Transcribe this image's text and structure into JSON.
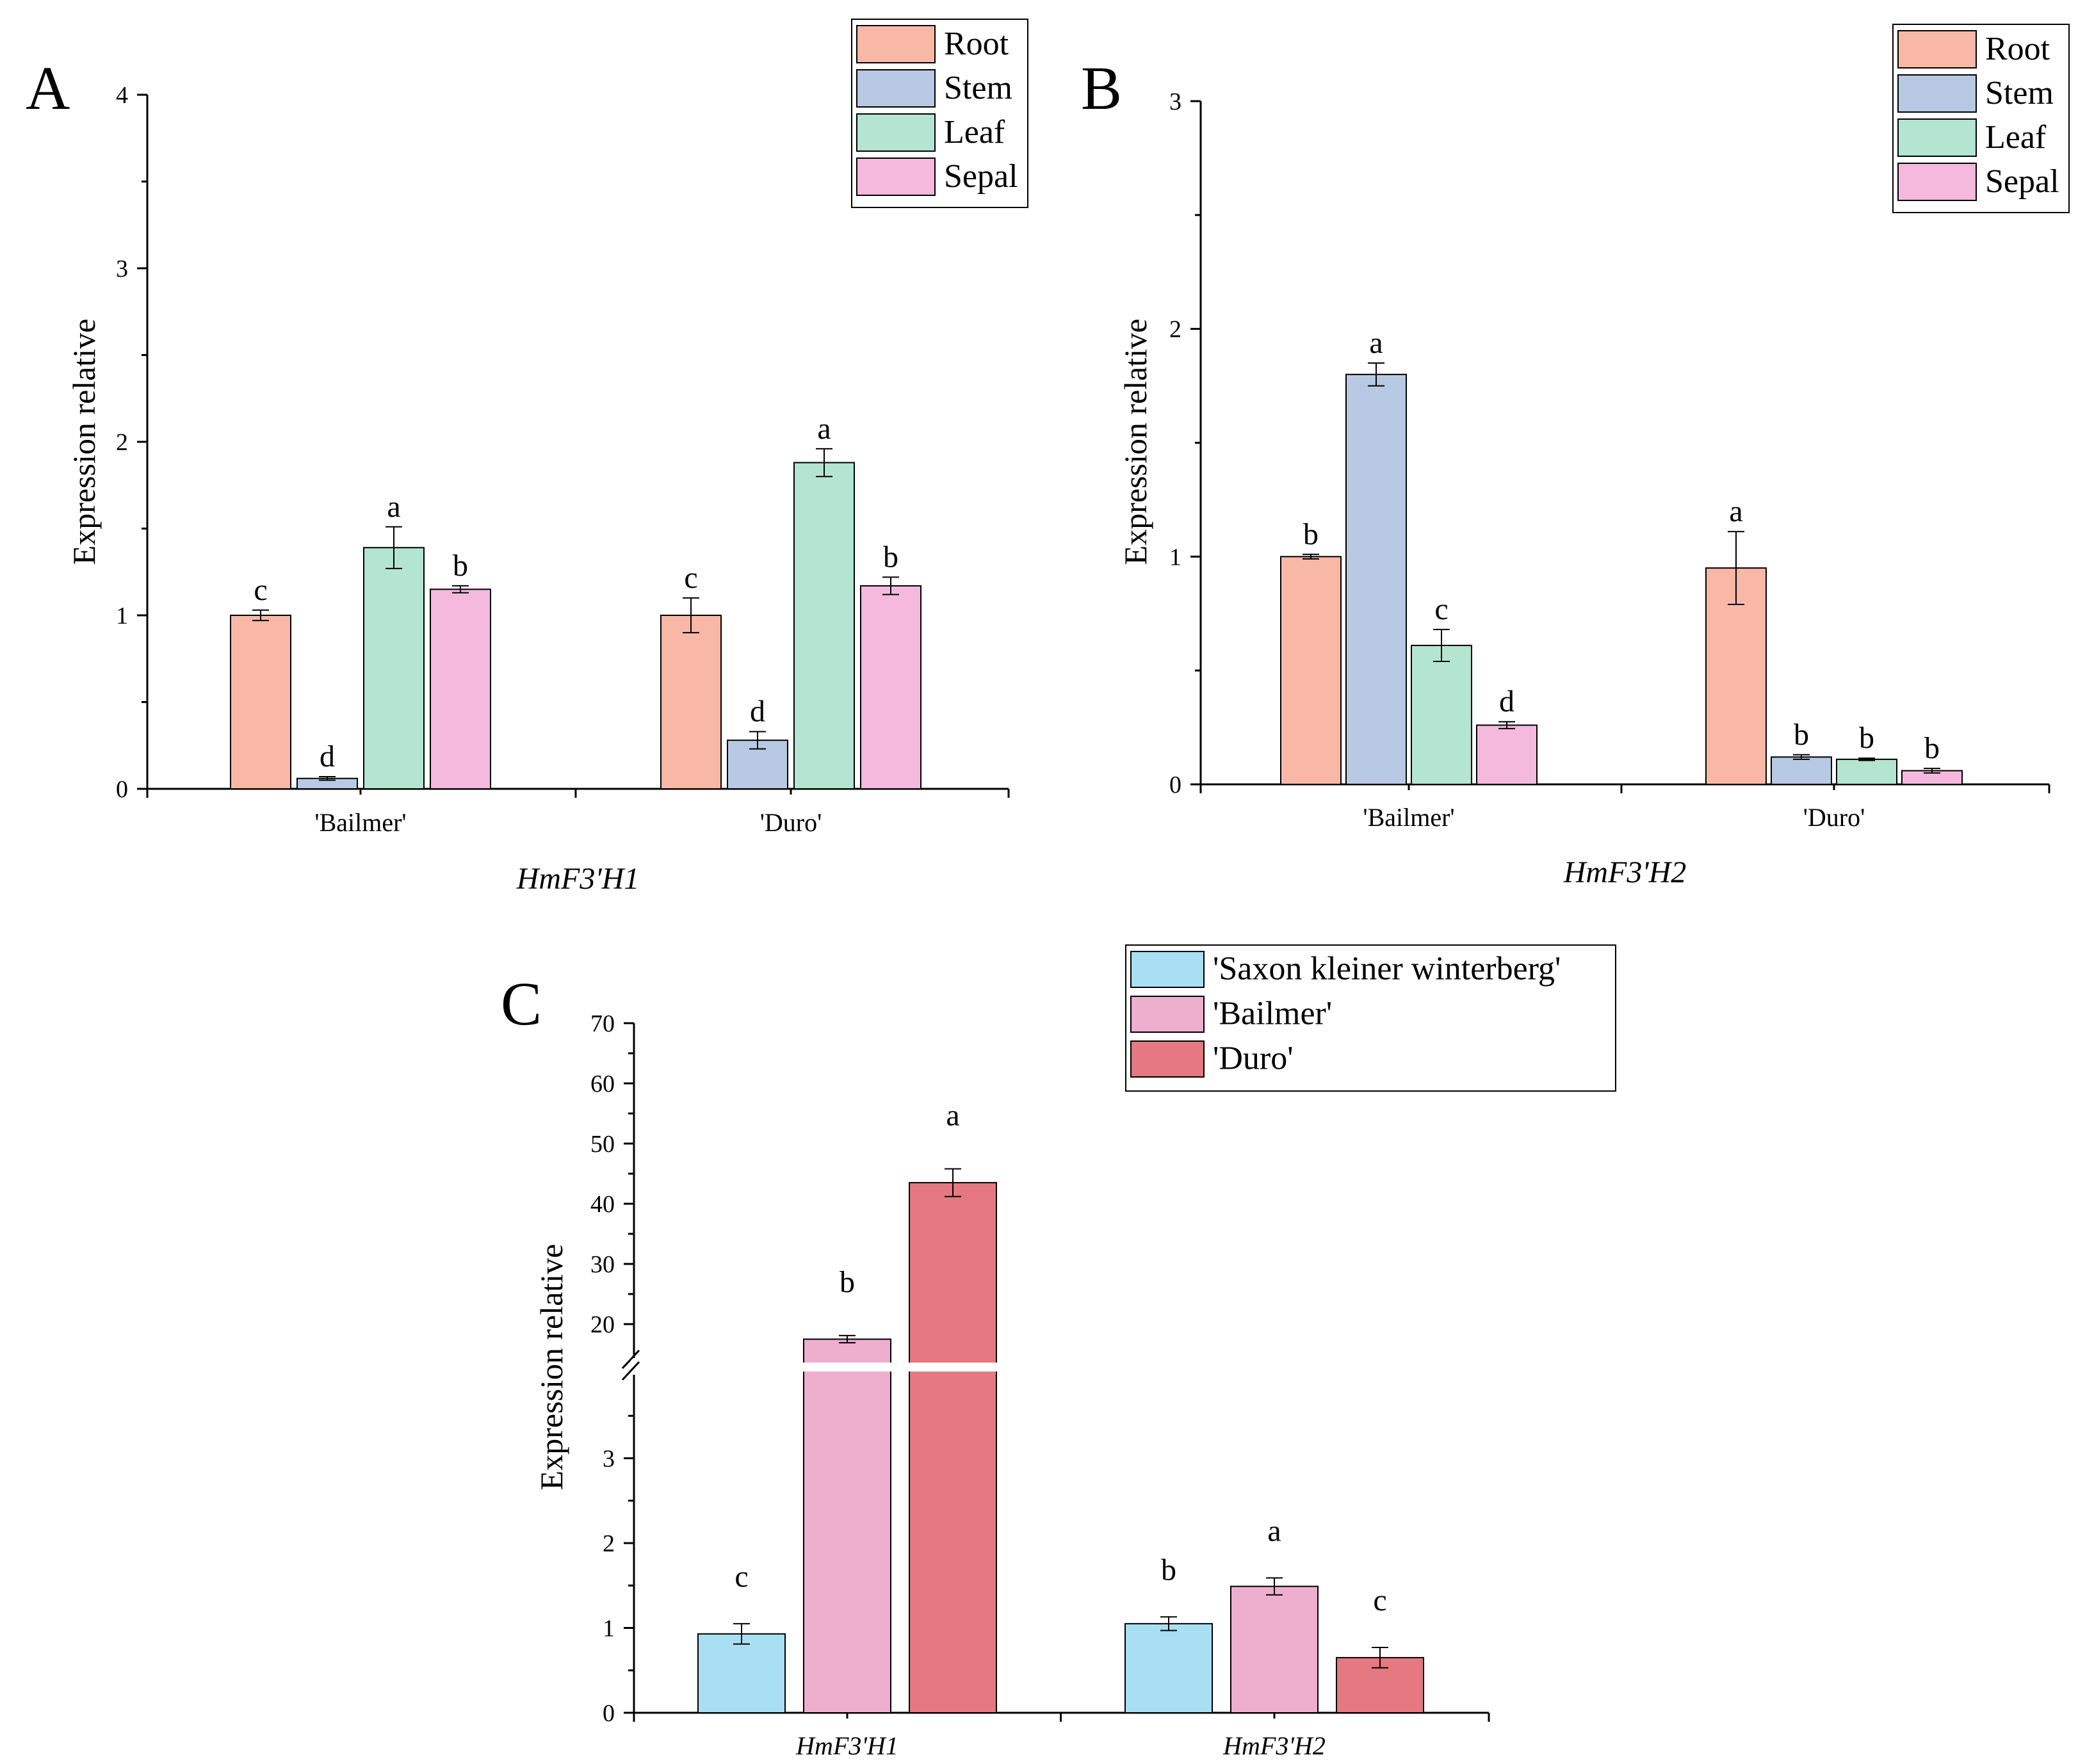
{
  "chart_data": [
    {
      "id": "A",
      "type": "bar",
      "panel_label": "A",
      "gene": "HmF3'H1",
      "ylabel": "Expression relative",
      "ylim": [
        0,
        4
      ],
      "yticks": [
        0,
        1,
        2,
        3,
        4
      ],
      "categories": [
        "'Bailmer'",
        "'Duro'"
      ],
      "series": [
        {
          "name": "Root",
          "color": "#F9B8A6",
          "values": [
            1.0,
            1.0
          ],
          "errors": [
            0.03,
            0.1
          ],
          "letters": [
            "c",
            "c"
          ]
        },
        {
          "name": "Stem",
          "color": "#B8C9E3",
          "values": [
            0.06,
            0.28
          ],
          "errors": [
            0.01,
            0.05
          ],
          "letters": [
            "d",
            "d"
          ]
        },
        {
          "name": "Leaf",
          "color": "#B3E5D2",
          "values": [
            1.39,
            1.88
          ],
          "errors": [
            0.12,
            0.08
          ],
          "letters": [
            "a",
            "a"
          ]
        },
        {
          "name": "Sepal",
          "color": "#F5B9DD",
          "values": [
            1.15,
            1.17
          ],
          "errors": [
            0.02,
            0.05
          ],
          "letters": [
            "b",
            "b"
          ]
        }
      ],
      "legend": "top-right"
    },
    {
      "id": "B",
      "type": "bar",
      "panel_label": "B",
      "gene": "HmF3'H2",
      "ylabel": "Expression relative",
      "ylim": [
        0,
        3
      ],
      "yticks": [
        0,
        1,
        2,
        3
      ],
      "categories": [
        "'Bailmer'",
        "'Duro'"
      ],
      "series": [
        {
          "name": "Root",
          "color": "#F9B8A6",
          "values": [
            1.0,
            0.95
          ],
          "errors": [
            0.01,
            0.16
          ],
          "letters": [
            "b",
            "a"
          ]
        },
        {
          "name": "Stem",
          "color": "#B8C9E3",
          "values": [
            1.8,
            0.12
          ],
          "errors": [
            0.05,
            0.01
          ],
          "letters": [
            "a",
            "b"
          ]
        },
        {
          "name": "Leaf",
          "color": "#B3E5D2",
          "values": [
            0.61,
            0.11
          ],
          "errors": [
            0.07,
            0.005
          ],
          "letters": [
            "c",
            "b"
          ]
        },
        {
          "name": "Sepal",
          "color": "#F5B9DD",
          "values": [
            0.26,
            0.06
          ],
          "errors": [
            0.015,
            0.01
          ],
          "letters": [
            "d",
            "b"
          ]
        }
      ],
      "legend": "top-right"
    },
    {
      "id": "C",
      "type": "bar",
      "panel_label": "C",
      "ylabel": "Expression relative",
      "ylim": [
        0,
        70
      ],
      "axis_break": [
        4,
        14
      ],
      "yticks_lower": [
        0,
        1,
        2,
        3
      ],
      "yticks_upper": [
        20,
        30,
        40,
        50,
        60,
        70
      ],
      "categories": [
        "HmF3'H1",
        "HmF3'H2"
      ],
      "series": [
        {
          "name": "'Saxon kleiner winterberg'",
          "color": "#A9DFF3",
          "values": [
            0.93,
            1.05
          ],
          "errors": [
            0.12,
            0.08
          ],
          "letters": [
            "c",
            "b"
          ]
        },
        {
          "name": "'Bailmer'",
          "color": "#EEAECD",
          "values": [
            17.5,
            1.49
          ],
          "errors": [
            0.6,
            0.1
          ],
          "letters": [
            "b",
            "a"
          ]
        },
        {
          "name": "'Duro'",
          "color": "#E57880",
          "values": [
            43.5,
            0.65
          ],
          "errors": [
            2.3,
            0.12
          ],
          "letters": [
            "a",
            "c"
          ]
        }
      ],
      "legend": "top-right"
    }
  ]
}
